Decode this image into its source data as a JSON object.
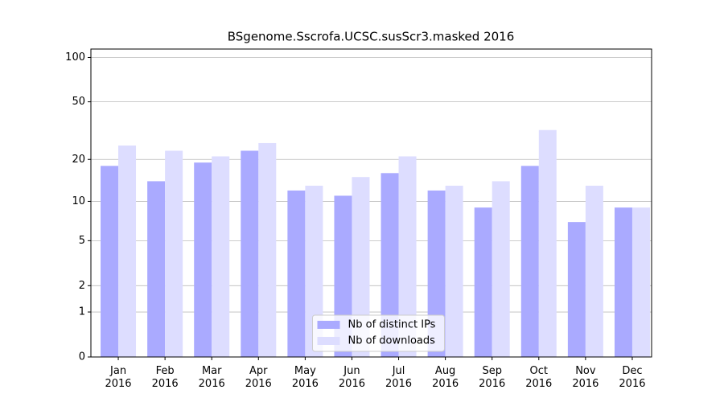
{
  "chart_data": {
    "type": "bar",
    "title": "BSgenome.Sscrofa.UCSC.susScr3.masked 2016",
    "categories": [
      "Jan\n2016",
      "Feb\n2016",
      "Mar\n2016",
      "Apr\n2016",
      "May\n2016",
      "Jun\n2016",
      "Jul\n2016",
      "Aug\n2016",
      "Sep\n2016",
      "Oct\n2016",
      "Nov\n2016",
      "Dec\n2016"
    ],
    "series": [
      {
        "name": "Nb of distinct IPs",
        "color": "#aaaaff",
        "values": [
          18,
          14,
          19,
          23,
          12,
          11,
          16,
          12,
          9,
          18,
          7,
          9
        ]
      },
      {
        "name": "Nb of downloads",
        "color": "#ddddff",
        "values": [
          25,
          23,
          21,
          26,
          13,
          15,
          21,
          13,
          14,
          32,
          13,
          9
        ]
      }
    ],
    "scale": "log1p",
    "ylim": [
      0,
      114
    ],
    "yticks": [
      0,
      1,
      2,
      5,
      10,
      20,
      50,
      100
    ],
    "grid": true,
    "legend": "lower center"
  }
}
